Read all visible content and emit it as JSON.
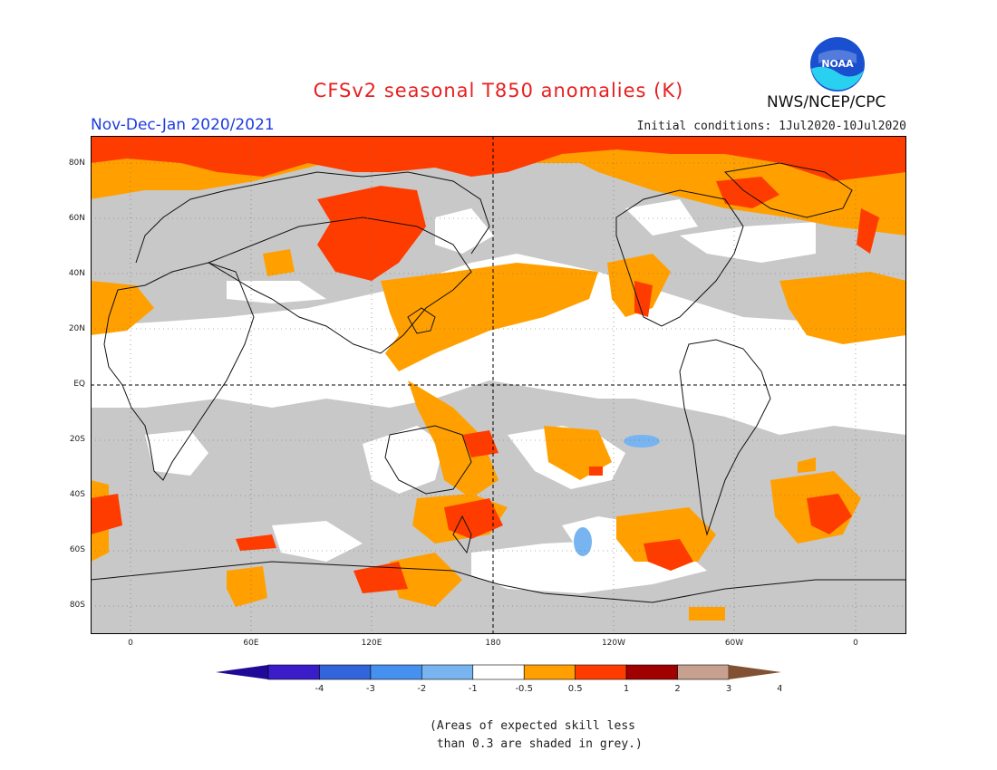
{
  "header": {
    "title": "CFSv2 seasonal T850 anomalies (K)",
    "period": "Nov-Dec-Jan 2020/2021",
    "initial_conditions": "Initial conditions: 1Jul2020-10Jul2020",
    "agency": "NWS/NCEP/CPC",
    "logo_text": "NOAA"
  },
  "map": {
    "lat_labels": [
      "80N",
      "60N",
      "40N",
      "20N",
      "EQ",
      "20S",
      "40S",
      "60S",
      "80S"
    ],
    "lon_labels": [
      "0",
      "60E",
      "120E",
      "180",
      "120W",
      "60W",
      "0"
    ],
    "colors": {
      "grey_low_skill": "#c8c8c8",
      "near_zero": "#ffffff",
      "warm_0_5_1": "#ffa000",
      "warm_1_2": "#ff3c00",
      "warm_2_3": "#a00000",
      "cool_minus_0_5": "#78b4f0",
      "cool_minus_1": "#4696f0"
    }
  },
  "colorbar": {
    "labels": [
      "-4",
      "-3",
      "-2",
      "-1",
      "-0.5",
      "0.5",
      "1",
      "2",
      "3",
      "4"
    ],
    "colors": [
      "#3a1cc8",
      "#3264dc",
      "#4690f0",
      "#78b4f0",
      "#ffffff",
      "#ffa000",
      "#ff3c00",
      "#a00000",
      "#c8a090"
    ],
    "extend_low_color": "#1e0a96",
    "extend_high_color": "#825032"
  },
  "note": {
    "line1": "(Areas of expected skill less",
    "line2": " than 0.3 are shaded in grey.)"
  }
}
